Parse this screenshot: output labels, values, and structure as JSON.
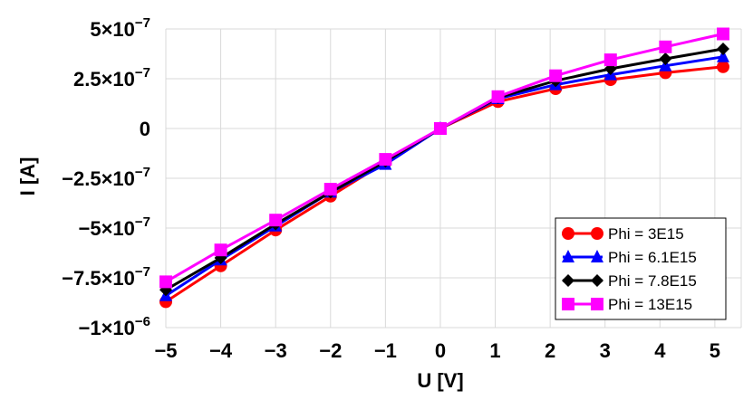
{
  "chart_data": {
    "type": "line",
    "title": "",
    "xlabel": "U [V]",
    "ylabel": "I [A]",
    "xlim": [
      -5,
      5.15
    ],
    "ylim": [
      -1e-06,
      5e-07
    ],
    "xticks": [
      -5,
      -4,
      -3,
      -2,
      -1,
      0,
      1,
      2,
      3,
      4,
      5
    ],
    "xtick_labels": [
      "−5",
      "−4",
      "−3",
      "−2",
      "−1",
      "0",
      "1",
      "2",
      "3",
      "4",
      "5"
    ],
    "yticks": [
      5e-07,
      2.5e-07,
      0,
      -2.5e-07,
      -5e-07,
      -7.5e-07,
      -1e-06
    ],
    "ytick_labels": [
      {
        "mant": "5×10",
        "exp": "−7"
      },
      {
        "mant": "2.5×10",
        "exp": "−7"
      },
      {
        "mant": "0",
        "exp": ""
      },
      {
        "mant": "−2.5×10",
        "exp": "−7"
      },
      {
        "mant": "−5×10",
        "exp": "−7"
      },
      {
        "mant": "−7.5×10",
        "exp": "−7"
      },
      {
        "mant": "−1×10",
        "exp": "−6"
      }
    ],
    "grid": true,
    "legend_position": "bottom-right",
    "series": [
      {
        "name": "Phi = 3E15",
        "color": "#ff0000",
        "marker": "circle",
        "x": [
          -5,
          -4,
          -3,
          -2,
          -1,
          0,
          1.05,
          2.1,
          3.1,
          4.1,
          5.15
        ],
        "y": [
          -8.7e-07,
          -6.9e-07,
          -5.1e-07,
          -3.4e-07,
          -1.7e-07,
          0,
          1.35e-07,
          2e-07,
          2.45e-07,
          2.8e-07,
          3.1e-07
        ]
      },
      {
        "name": "Phi = 6.1E15",
        "color": "#0000ff",
        "marker": "triangle",
        "x": [
          -5,
          -4,
          -3,
          -2,
          -1,
          0,
          1.05,
          2.1,
          3.1,
          4.1,
          5.15
        ],
        "y": [
          -8.4e-07,
          -6.6e-07,
          -4.9e-07,
          -3.2e-07,
          -1.8e-07,
          0,
          1.5e-07,
          2.2e-07,
          2.7e-07,
          3.15e-07,
          3.6e-07
        ]
      },
      {
        "name": "Phi = 7.8E15",
        "color": "#000000",
        "marker": "diamond",
        "x": [
          -5,
          -4,
          -3,
          -2,
          -1,
          0,
          1.05,
          2.1,
          3.1,
          4.1,
          5.15
        ],
        "y": [
          -8.1e-07,
          -6.5e-07,
          -4.8e-07,
          -3.2e-07,
          -1.65e-07,
          0,
          1.55e-07,
          2.4e-07,
          3e-07,
          3.5e-07,
          4e-07
        ]
      },
      {
        "name": "Phi = 13E15",
        "color": "#ff00ff",
        "marker": "square",
        "x": [
          -5,
          -4,
          -3,
          -2,
          -1,
          0,
          1.05,
          2.1,
          3.1,
          4.1,
          5.15
        ],
        "y": [
          -7.7e-07,
          -6.1e-07,
          -4.6e-07,
          -3.05e-07,
          -1.55e-07,
          0,
          1.6e-07,
          2.65e-07,
          3.45e-07,
          4.1e-07,
          4.75e-07
        ]
      }
    ]
  }
}
